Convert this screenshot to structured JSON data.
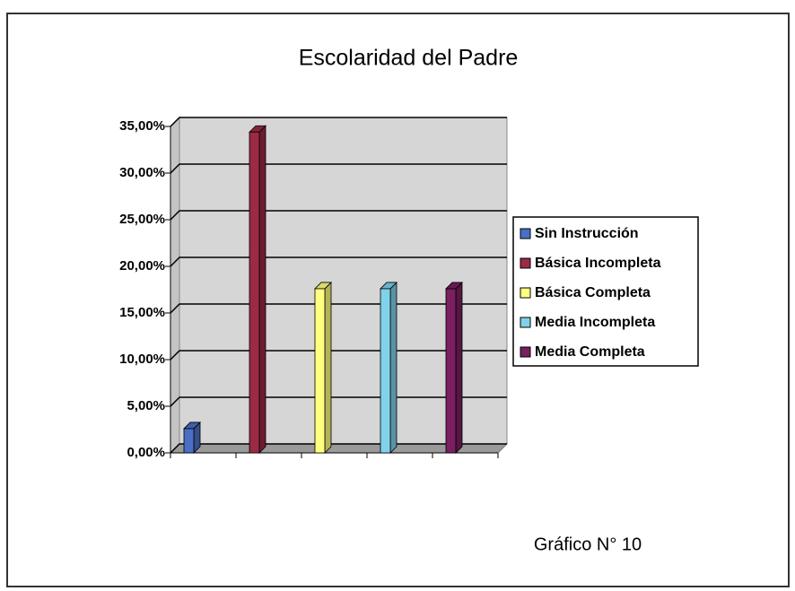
{
  "chart_data": {
    "type": "bar",
    "title": "Escolaridad del Padre",
    "annotation": "Gráfico N° 10",
    "series": [
      {
        "name": "Sin Instrucción",
        "color": "#4a6fc4",
        "values": [
          2.6
        ]
      },
      {
        "name": "Básica Incompleta",
        "color": "#9b2a45",
        "values": [
          34.4
        ]
      },
      {
        "name": "Básica Completa",
        "color": "#ffff80",
        "values": [
          17.6
        ]
      },
      {
        "name": "Media Incompleta",
        "color": "#80d2ea",
        "values": [
          17.6
        ]
      },
      {
        "name": "Media Completa",
        "color": "#7a1f5f",
        "values": [
          17.6
        ]
      }
    ],
    "ylim": [
      0,
      35
    ],
    "yticks": [
      {
        "value": 0,
        "label": "0,00%"
      },
      {
        "value": 5,
        "label": "5,00%"
      },
      {
        "value": 10,
        "label": "10,00%"
      },
      {
        "value": 15,
        "label": "15,00%"
      },
      {
        "value": 20,
        "label": "20,00%"
      },
      {
        "value": 25,
        "label": "25,00%"
      },
      {
        "value": 30,
        "label": "30,00%"
      },
      {
        "value": 35,
        "label": "35,00%"
      }
    ],
    "grid": true,
    "legend": "right"
  }
}
